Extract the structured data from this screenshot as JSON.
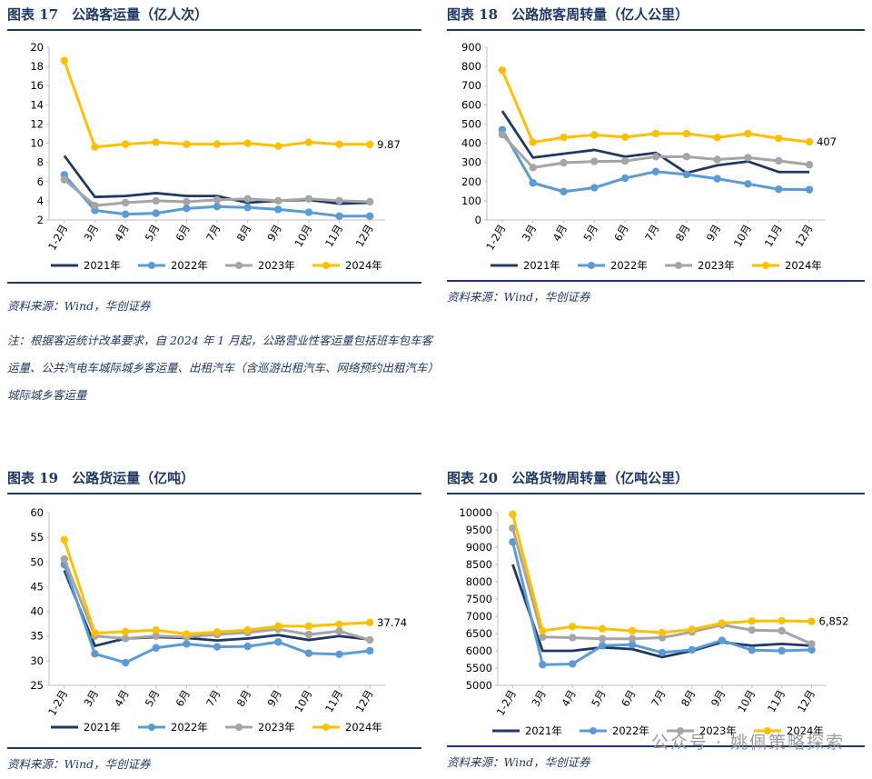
{
  "chart_data": [
    {
      "type": "line",
      "title": "图表 17　公路客运量（亿人次）",
      "categories": [
        "1-2月",
        "3月",
        "4月",
        "5月",
        "6月",
        "7月",
        "8月",
        "9月",
        "10月",
        "11月",
        "12月"
      ],
      "ylim": [
        2,
        20
      ],
      "yticks": [
        2,
        4,
        6,
        8,
        10,
        12,
        14,
        16,
        18,
        20
      ],
      "series": [
        {
          "name": "2021年",
          "color": "#1f3864",
          "values": [
            8.7,
            4.4,
            4.5,
            4.8,
            4.5,
            4.5,
            3.8,
            4.0,
            4.1,
            3.7,
            3.8
          ]
        },
        {
          "name": "2022年",
          "color": "#5b9bd5",
          "values": [
            6.7,
            3.0,
            2.6,
            2.7,
            3.2,
            3.4,
            3.3,
            3.1,
            2.8,
            2.4,
            2.4
          ]
        },
        {
          "name": "2023年",
          "color": "#a5a5a5",
          "values": [
            6.2,
            3.5,
            3.8,
            4.0,
            3.9,
            4.1,
            4.2,
            4.0,
            4.2,
            4.0,
            3.9
          ]
        },
        {
          "name": "2024年",
          "color": "#ffc000",
          "values": [
            18.6,
            9.6,
            9.9,
            10.1,
            9.9,
            9.9,
            10.0,
            9.7,
            10.1,
            9.9,
            9.87
          ]
        }
      ],
      "end_label": "9.87",
      "source": "资料来源：Wind，华创证券",
      "note": "注：根据客运统计改革要求，自 2024 年 1 月起，公路营业性客运量包括班车包车客运量、公共汽电车城际城乡客运量、出租汽车（含巡游出租汽车、网络预约出租汽车）城际城乡客运量"
    },
    {
      "type": "line",
      "title": "图表 18　公路旅客周转量（亿人公里）",
      "categories": [
        "1-2月",
        "3月",
        "4月",
        "5月",
        "6月",
        "7月",
        "8月",
        "9月",
        "10月",
        "11月",
        "12月"
      ],
      "ylim": [
        0,
        900
      ],
      "yticks": [
        0,
        100,
        200,
        300,
        400,
        500,
        600,
        700,
        800,
        900
      ],
      "series": [
        {
          "name": "2021年",
          "color": "#1f3864",
          "values": [
            568,
            325,
            345,
            365,
            330,
            350,
            245,
            285,
            305,
            250,
            250
          ]
        },
        {
          "name": "2022年",
          "color": "#5b9bd5",
          "values": [
            470,
            193,
            148,
            168,
            218,
            252,
            237,
            215,
            188,
            160,
            158
          ]
        },
        {
          "name": "2023年",
          "color": "#a5a5a5",
          "values": [
            445,
            273,
            298,
            305,
            307,
            330,
            330,
            315,
            325,
            308,
            288
          ]
        },
        {
          "name": "2024年",
          "color": "#ffc000",
          "values": [
            780,
            405,
            430,
            443,
            432,
            450,
            450,
            430,
            450,
            425,
            407
          ]
        }
      ],
      "end_label": "407",
      "source": "资料来源：Wind，华创证券"
    },
    {
      "type": "line",
      "title": "图表 19　公路货运量（亿吨）",
      "categories": [
        "1-2月",
        "3月",
        "4月",
        "5月",
        "6月",
        "7月",
        "8月",
        "9月",
        "10月",
        "11月",
        "12月"
      ],
      "ylim": [
        25,
        60
      ],
      "yticks": [
        25,
        30,
        35,
        40,
        45,
        50,
        55,
        60
      ],
      "series": [
        {
          "name": "2021年",
          "color": "#1f3864",
          "values": [
            48.3,
            33.0,
            34.5,
            34.8,
            34.6,
            34.1,
            34.5,
            35.2,
            34.2,
            35.0,
            34.3
          ]
        },
        {
          "name": "2022年",
          "color": "#5b9bd5",
          "values": [
            49.5,
            31.4,
            29.6,
            32.6,
            33.4,
            32.8,
            32.9,
            33.8,
            31.5,
            31.3,
            32.0
          ]
        },
        {
          "name": "2023年",
          "color": "#a5a5a5",
          "values": [
            50.6,
            35.0,
            34.5,
            35.0,
            34.8,
            35.3,
            35.7,
            36.4,
            35.3,
            36.0,
            34.2
          ]
        },
        {
          "name": "2024年",
          "color": "#ffc000",
          "values": [
            54.5,
            35.6,
            35.9,
            36.2,
            35.4,
            35.8,
            36.2,
            37.0,
            37.0,
            37.4,
            37.74
          ]
        }
      ],
      "end_label": "37.74",
      "source": "资料来源：Wind，华创证券"
    },
    {
      "type": "line",
      "title": "图表 20　公路货物周转量（亿吨公里）",
      "categories": [
        "1-2月",
        "3月",
        "4月",
        "5月",
        "6月",
        "7月",
        "8月",
        "9月",
        "10月",
        "11月",
        "12月"
      ],
      "ylim": [
        5000,
        10000
      ],
      "yticks": [
        5000,
        5500,
        6000,
        6500,
        7000,
        7500,
        8000,
        8500,
        9000,
        9500,
        10000
      ],
      "ytick_labels": [
        "5000",
        "5500",
        "6000",
        "6500",
        "7000",
        "7500",
        "8000",
        "8500",
        "9000",
        "9500",
        "10000"
      ],
      "series": [
        {
          "name": "2021年",
          "color": "#1f3864",
          "values": [
            8500,
            6000,
            6000,
            6100,
            6050,
            5820,
            6000,
            6250,
            6150,
            6200,
            6150
          ]
        },
        {
          "name": "2022年",
          "color": "#5b9bd5",
          "values": [
            9150,
            5600,
            5620,
            6150,
            6180,
            5950,
            6030,
            6300,
            6020,
            6000,
            6030
          ]
        },
        {
          "name": "2023年",
          "color": "#a5a5a5",
          "values": [
            9550,
            6400,
            6380,
            6350,
            6350,
            6380,
            6550,
            6750,
            6600,
            6580,
            6200
          ]
        },
        {
          "name": "2024年",
          "color": "#ffc000",
          "values": [
            9950,
            6580,
            6700,
            6640,
            6580,
            6530,
            6620,
            6800,
            6860,
            6870,
            6852
          ]
        }
      ],
      "end_label": "6,852",
      "source": "资料来源：Wind，华创证券"
    }
  ],
  "watermark": "公众号 · 姚佩策略探索"
}
